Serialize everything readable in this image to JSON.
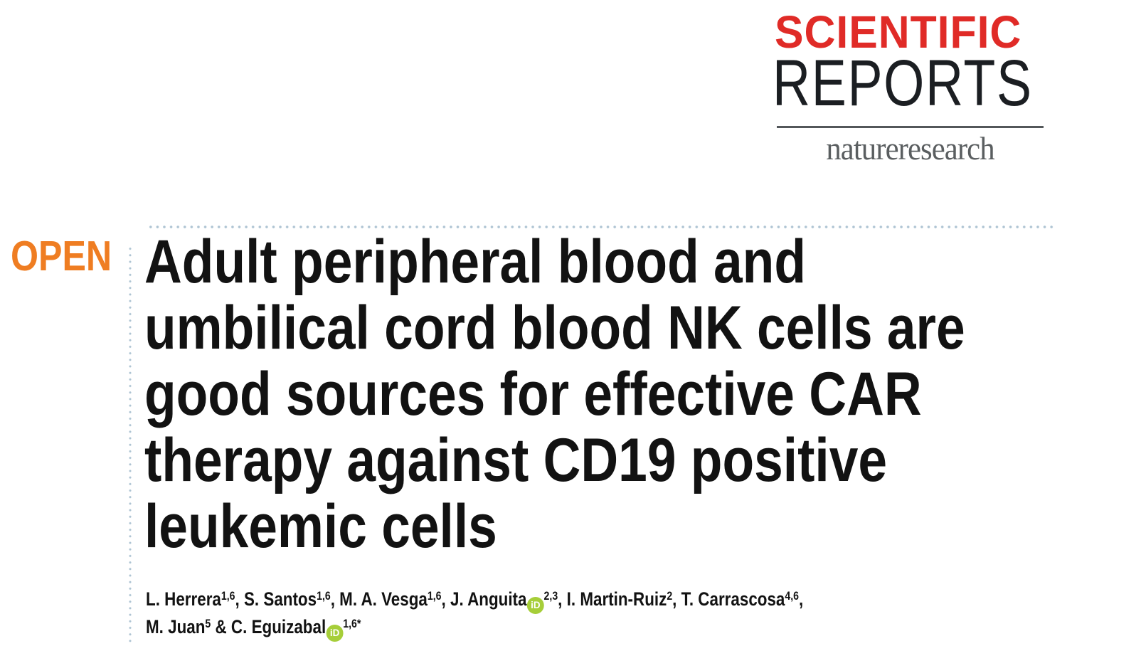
{
  "journal": {
    "title_word1": "SCIENTIFIC",
    "title_word2": "REPORTS",
    "publisher": "natureresearch",
    "colors": {
      "scientific_red": "#e02b27",
      "reports_black": "#1b1e22",
      "publisher_gray": "#5a5e60",
      "rule_gray": "#53575a"
    }
  },
  "article": {
    "access_label": "OPEN",
    "access_color": "#ef7d22",
    "title_color": "#121212",
    "title_lines": [
      "Adult peripheral blood and",
      "umbilical cord blood NK cells are",
      "good sources for effective CAR",
      "therapy against CD19 positive",
      "leukemic cells"
    ],
    "title_full": "Adult peripheral blood and umbilical cord blood NK cells are good sources for effective CAR therapy against CD19 positive leukemic cells",
    "authors": {
      "line1": [
        {
          "name": "L. Herrera",
          "sup": "1,6",
          "orcid": false,
          "sep": ", "
        },
        {
          "name": "S. Santos",
          "sup": "1,6",
          "orcid": false,
          "sep": ", "
        },
        {
          "name": "M. A. Vesga",
          "sup": "1,6",
          "orcid": false,
          "sep": ", "
        },
        {
          "name": "J. Anguita",
          "sup": "2,3",
          "orcid": true,
          "sep": ", "
        },
        {
          "name": "I. Martin-Ruiz",
          "sup": "2",
          "orcid": false,
          "sep": ", "
        },
        {
          "name": "T. Carrascosa",
          "sup": "4,6",
          "orcid": false,
          "sep": ","
        }
      ],
      "line2": [
        {
          "name": "M. Juan",
          "sup": "5",
          "orcid": false,
          "sep": " & "
        },
        {
          "name": "C. Eguizabal",
          "sup": "1,6*",
          "orcid": true,
          "sep": ""
        }
      ]
    }
  },
  "icons": {
    "orcid": {
      "label": "iD",
      "color": "#a6ce39"
    }
  },
  "decor": {
    "dot_color": "#aec4d3"
  }
}
